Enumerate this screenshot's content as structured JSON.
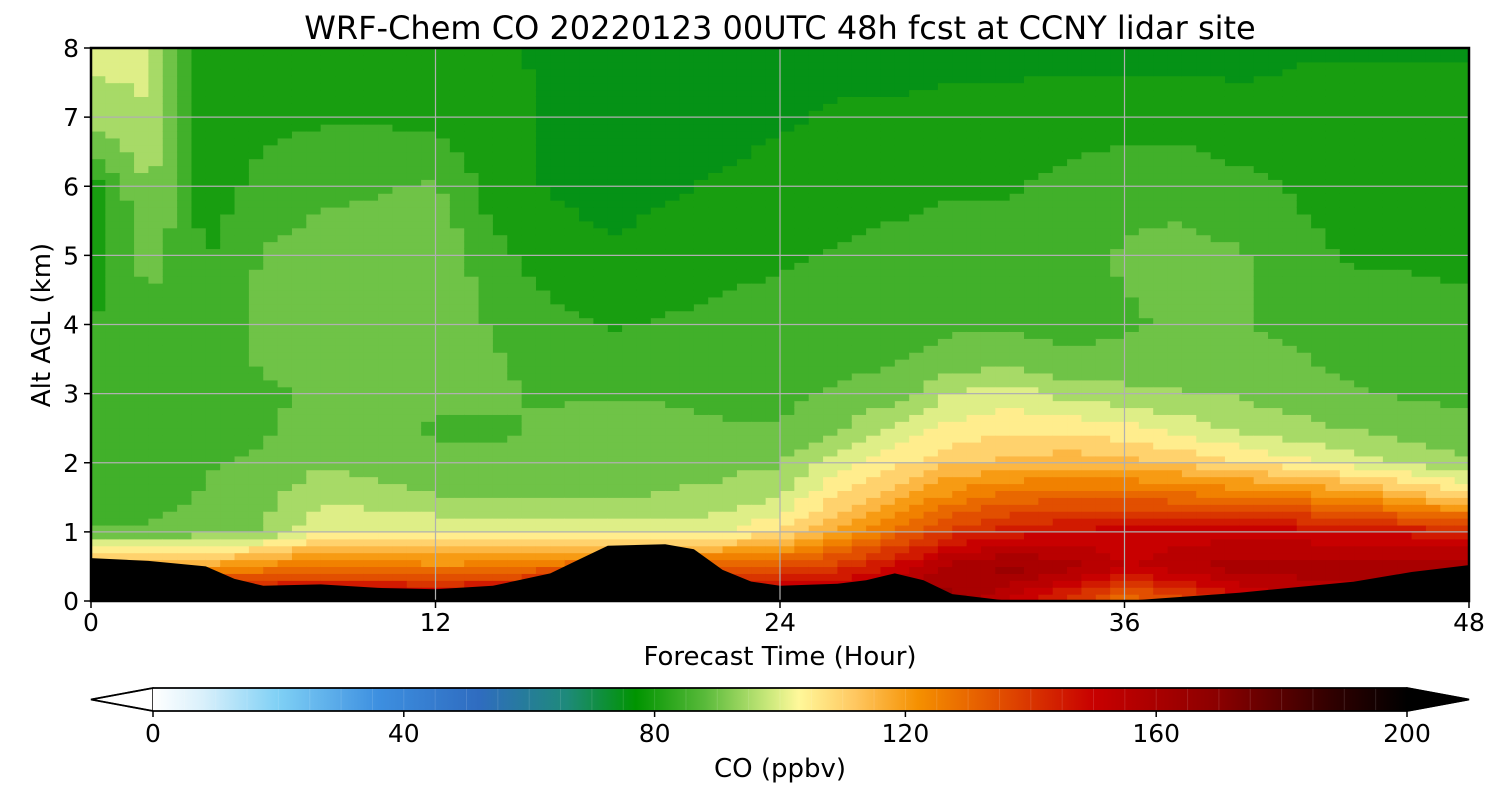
{
  "chart_data": {
    "type": "heatmap",
    "title": "WRF-Chem CO  20220123 00UTC 48h fcst at CCNY lidar site",
    "xlabel": "Forecast Time (Hour)",
    "ylabel": "Alt AGL (km)",
    "xlim": [
      0,
      48
    ],
    "ylim": [
      0,
      8
    ],
    "xticks": [
      0,
      12,
      24,
      36,
      48
    ],
    "yticks": [
      0,
      1,
      2,
      3,
      4,
      5,
      6,
      7,
      8
    ],
    "grid": true,
    "colorbar": {
      "label": "CO  (ppbv)",
      "range": [
        0,
        200
      ],
      "ticks": [
        0,
        40,
        80,
        120,
        160,
        200
      ],
      "extend": "both",
      "orientation": "horizontal",
      "stops": [
        {
          "value": 0,
          "color": "#ffffff"
        },
        {
          "value": 8,
          "color": "#d9f0fb"
        },
        {
          "value": 20,
          "color": "#7fd0f5"
        },
        {
          "value": 36,
          "color": "#3d8fe0"
        },
        {
          "value": 52,
          "color": "#2f6cc0"
        },
        {
          "value": 66,
          "color": "#1e8a7a"
        },
        {
          "value": 77,
          "color": "#009400"
        },
        {
          "value": 88,
          "color": "#59ba3a"
        },
        {
          "value": 98,
          "color": "#c8e87a"
        },
        {
          "value": 103,
          "color": "#fff89a"
        },
        {
          "value": 112,
          "color": "#ffc760"
        },
        {
          "value": 122,
          "color": "#f59000"
        },
        {
          "value": 136,
          "color": "#e04a00"
        },
        {
          "value": 150,
          "color": "#c80000"
        },
        {
          "value": 170,
          "color": "#8a0000"
        },
        {
          "value": 188,
          "color": "#300000"
        },
        {
          "value": 200,
          "color": "#000000"
        }
      ]
    },
    "surface_terrain_top_km": [
      [
        0,
        0.62
      ],
      [
        2,
        0.58
      ],
      [
        4,
        0.5
      ],
      [
        5,
        0.32
      ],
      [
        6,
        0.22
      ],
      [
        8,
        0.24
      ],
      [
        10,
        0.19
      ],
      [
        12,
        0.17
      ],
      [
        14,
        0.22
      ],
      [
        16,
        0.4
      ],
      [
        17,
        0.6
      ],
      [
        18,
        0.8
      ],
      [
        20,
        0.82
      ],
      [
        21,
        0.75
      ],
      [
        22,
        0.45
      ],
      [
        23,
        0.28
      ],
      [
        24,
        0.22
      ],
      [
        26,
        0.25
      ],
      [
        27,
        0.3
      ],
      [
        28,
        0.4
      ],
      [
        29,
        0.3
      ],
      [
        30,
        0.1
      ],
      [
        32,
        0.0
      ],
      [
        36,
        0.0
      ],
      [
        40,
        0.12
      ],
      [
        44,
        0.28
      ],
      [
        46,
        0.42
      ],
      [
        48,
        0.52
      ]
    ],
    "co_profiles": {
      "altitudes_km": [
        0,
        0.5,
        1,
        1.5,
        2,
        2.5,
        3,
        3.5,
        4,
        5,
        6,
        7,
        8
      ],
      "times_h": [
        0,
        2,
        4,
        6,
        8,
        10,
        12,
        14,
        16,
        18,
        20,
        22,
        24,
        26,
        28,
        30,
        32,
        34,
        36,
        38,
        40,
        42,
        44,
        46,
        48
      ],
      "values_ppbv": [
        [
          160,
          120,
          88,
          85,
          84,
          85,
          86,
          85,
          83,
          78,
          80,
          95,
          99
        ],
        [
          160,
          120,
          88,
          86,
          85,
          86,
          87,
          86,
          85,
          90,
          93,
          97,
          99
        ],
        [
          160,
          120,
          90,
          88,
          87,
          86,
          86,
          86,
          85,
          82,
          80,
          79,
          79
        ],
        [
          160,
          124,
          93,
          91,
          88,
          87,
          87,
          88,
          89,
          88,
          84,
          81,
          79
        ],
        [
          160,
          128,
          102,
          96,
          92,
          89,
          88,
          89,
          90,
          90,
          86,
          82,
          79
        ],
        [
          160,
          126,
          103,
          95,
          90,
          89,
          89,
          90,
          91,
          91,
          87,
          82,
          79
        ],
        [
          160,
          124,
          102,
          93,
          88,
          87,
          88,
          90,
          91,
          92,
          88,
          81,
          78
        ],
        [
          160,
          126,
          101,
          92,
          88,
          87,
          88,
          88,
          87,
          84,
          80,
          79,
          78
        ],
        [
          160,
          130,
          100,
          92,
          89,
          88,
          87,
          86,
          84,
          80,
          77,
          77,
          77
        ],
        [
          160,
          132,
          100,
          92,
          90,
          90,
          87,
          85,
          82,
          78,
          76,
          76,
          76
        ],
        [
          160,
          132,
          100,
          93,
          91,
          89,
          87,
          85,
          83,
          79,
          77,
          76,
          76
        ],
        [
          160,
          132,
          102,
          94,
          91,
          88,
          86,
          85,
          84,
          81,
          78,
          76,
          76
        ],
        [
          160,
          135,
          108,
          98,
          92,
          88,
          86,
          85,
          84,
          82,
          79,
          77,
          76
        ],
        [
          160,
          140,
          118,
          108,
          100,
          92,
          88,
          86,
          85,
          83,
          80,
          78,
          76
        ],
        [
          160,
          148,
          130,
          115,
          106,
          98,
          90,
          87,
          86,
          84,
          81,
          78,
          76
        ],
        [
          165,
          160,
          140,
          125,
          112,
          104,
          98,
          89,
          87,
          85,
          82,
          79,
          76
        ],
        [
          150,
          165,
          145,
          130,
          114,
          106,
          100,
          90,
          87,
          85,
          82,
          79,
          76
        ],
        [
          140,
          160,
          148,
          132,
          116,
          106,
          96,
          88,
          86,
          86,
          84,
          80,
          76
        ],
        [
          128,
          152,
          150,
          132,
          114,
          104,
          94,
          89,
          87,
          88,
          86,
          80,
          76
        ],
        [
          135,
          156,
          150,
          130,
          112,
          100,
          93,
          89,
          88,
          89,
          86,
          80,
          76
        ],
        [
          145,
          160,
          150,
          128,
          108,
          96,
          92,
          90,
          88,
          88,
          84,
          79,
          76
        ],
        [
          152,
          160,
          150,
          126,
          104,
          94,
          90,
          88,
          86,
          84,
          82,
          79,
          77
        ],
        [
          155,
          160,
          148,
          122,
          100,
          92,
          88,
          86,
          84,
          82,
          80,
          79,
          77
        ],
        [
          158,
          160,
          146,
          116,
          96,
          90,
          87,
          85,
          84,
          82,
          80,
          79,
          77
        ],
        [
          160,
          160,
          145,
          110,
          93,
          89,
          86,
          84,
          83,
          82,
          80,
          79,
          77
        ]
      ]
    }
  }
}
